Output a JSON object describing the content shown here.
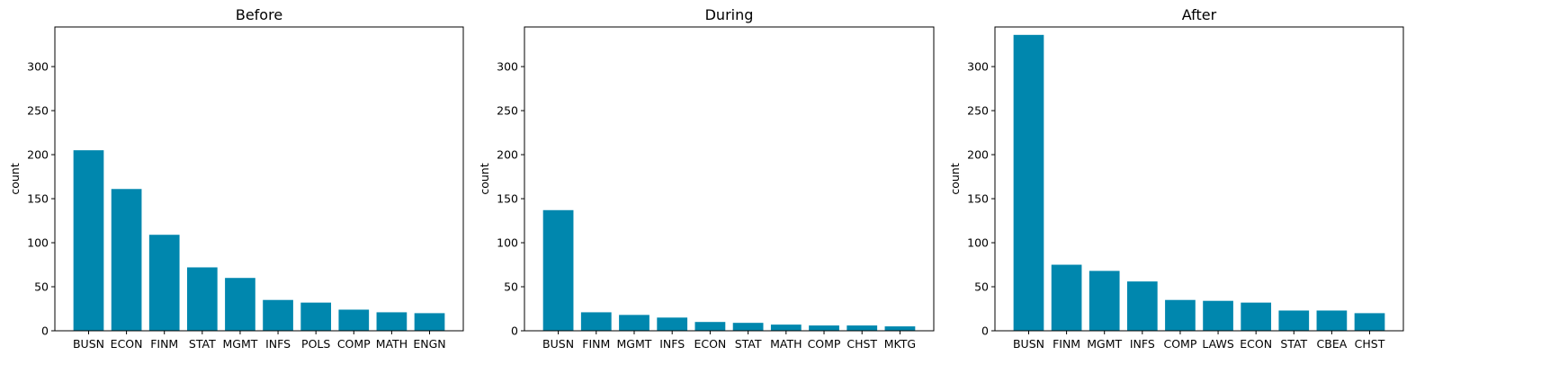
{
  "chart_data": [
    {
      "type": "bar",
      "title": "Before",
      "xlabel": "",
      "ylabel": "count",
      "ylim": [
        0,
        345
      ],
      "yticks": [
        0,
        50,
        100,
        150,
        200,
        250,
        300
      ],
      "grid": false,
      "bar_color": "#0087ae",
      "categories": [
        "BUSN",
        "ECON",
        "FINM",
        "STAT",
        "MGMT",
        "INFS",
        "POLS",
        "COMP",
        "MATH",
        "ENGN"
      ],
      "values": [
        205,
        161,
        109,
        72,
        60,
        35,
        32,
        24,
        21,
        20
      ]
    },
    {
      "type": "bar",
      "title": "During",
      "xlabel": "",
      "ylabel": "count",
      "ylim": [
        0,
        345
      ],
      "yticks": [
        0,
        50,
        100,
        150,
        200,
        250,
        300
      ],
      "grid": false,
      "bar_color": "#0087ae",
      "categories": [
        "BUSN",
        "FINM",
        "MGMT",
        "INFS",
        "ECON",
        "STAT",
        "MATH",
        "COMP",
        "CHST",
        "MKTG"
      ],
      "values": [
        137,
        21,
        18,
        15,
        10,
        9,
        7,
        6,
        6,
        5
      ]
    },
    {
      "type": "bar",
      "title": "After",
      "xlabel": "",
      "ylabel": "count",
      "ylim": [
        0,
        345
      ],
      "yticks": [
        0,
        50,
        100,
        150,
        200,
        250,
        300
      ],
      "grid": false,
      "bar_color": "#0087ae",
      "categories": [
        "BUSN",
        "FINM",
        "MGMT",
        "INFS",
        "COMP",
        "LAWS",
        "ECON",
        "STAT",
        "CBEA",
        "CHST"
      ],
      "values": [
        336,
        75,
        68,
        56,
        35,
        34,
        32,
        23,
        23,
        20
      ]
    }
  ]
}
